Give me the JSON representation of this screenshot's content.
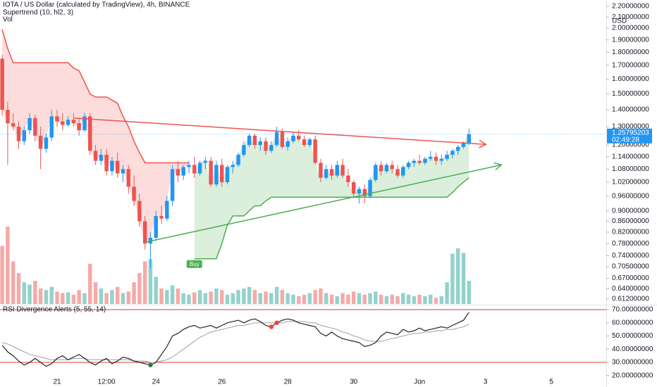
{
  "chart_data": {
    "type": "candlestick",
    "title": "IOTA / US Dollar (calculated by TradingView), 4h, BINANCE",
    "up_color": "#2196f3",
    "down_color": "#ef5350",
    "open": [
      1.75,
      1.4,
      1.32,
      1.3,
      1.22,
      1.28,
      1.35,
      1.25,
      1.18,
      1.24,
      1.36,
      1.33,
      1.31,
      1.34,
      1.32,
      1.28,
      1.36,
      1.17,
      1.12,
      1.15,
      1.07,
      1.12,
      1.06,
      1.08,
      1.0,
      0.94,
      0.86,
      0.78,
      0.8,
      0.88,
      0.87,
      0.94,
      1.08,
      1.05,
      1.09,
      1.1,
      1.06,
      1.11,
      1.12,
      1.01,
      1.1,
      1.02,
      1.09,
      1.1,
      1.15,
      1.2,
      1.25,
      1.2,
      1.22,
      1.17,
      1.2,
      1.27,
      1.19,
      1.22,
      1.25,
      1.23,
      1.2,
      1.23,
      1.11,
      1.04,
      1.08,
      1.05,
      1.1,
      1.05,
      1.02,
      0.97,
      0.99,
      0.96,
      1.03,
      1.1,
      1.07,
      1.1,
      1.08,
      1.05,
      1.09,
      1.11,
      1.12,
      1.11,
      1.13,
      1.14,
      1.12,
      1.13,
      1.15,
      1.17,
      1.19,
      1.21
    ],
    "high": [
      1.78,
      1.45,
      1.38,
      1.33,
      1.3,
      1.38,
      1.37,
      1.3,
      1.26,
      1.4,
      1.4,
      1.38,
      1.36,
      1.38,
      1.35,
      1.38,
      1.38,
      1.2,
      1.18,
      1.18,
      1.14,
      1.16,
      1.1,
      1.1,
      1.05,
      0.97,
      0.88,
      0.82,
      0.9,
      0.92,
      0.96,
      1.1,
      1.12,
      1.1,
      1.12,
      1.14,
      1.12,
      1.14,
      1.14,
      1.12,
      1.13,
      1.1,
      1.12,
      1.16,
      1.22,
      1.26,
      1.26,
      1.24,
      1.24,
      1.22,
      1.3,
      1.29,
      1.24,
      1.27,
      1.28,
      1.25,
      1.24,
      1.25,
      1.13,
      1.1,
      1.1,
      1.12,
      1.13,
      1.08,
      1.03,
      1.0,
      1.01,
      1.04,
      1.11,
      1.12,
      1.11,
      1.12,
      1.1,
      1.1,
      1.12,
      1.13,
      1.15,
      1.14,
      1.17,
      1.16,
      1.15,
      1.17,
      1.18,
      1.2,
      1.22,
      1.29
    ],
    "low": [
      1.36,
      1.1,
      1.28,
      1.18,
      1.2,
      1.26,
      1.22,
      1.08,
      1.16,
      1.22,
      1.3,
      1.28,
      1.3,
      1.3,
      1.25,
      1.27,
      1.15,
      1.1,
      1.1,
      1.05,
      1.05,
      1.04,
      1.02,
      0.97,
      0.92,
      0.84,
      0.76,
      0.7,
      0.79,
      0.85,
      0.86,
      0.92,
      1.02,
      1.03,
      1.06,
      1.04,
      1.05,
      1.08,
      1.0,
      1.0,
      1.0,
      1.01,
      1.06,
      1.09,
      1.14,
      1.19,
      1.18,
      1.17,
      1.15,
      1.16,
      1.19,
      1.18,
      1.17,
      1.21,
      1.22,
      1.19,
      1.19,
      1.1,
      1.02,
      1.03,
      1.03,
      1.04,
      1.04,
      1.0,
      0.95,
      0.93,
      0.93,
      0.95,
      1.02,
      1.05,
      1.06,
      1.06,
      1.04,
      1.04,
      1.08,
      1.09,
      1.1,
      1.1,
      1.12,
      1.1,
      1.1,
      1.12,
      1.13,
      1.15,
      1.18,
      1.2
    ],
    "close": [
      1.4,
      1.32,
      1.3,
      1.22,
      1.28,
      1.35,
      1.25,
      1.18,
      1.24,
      1.36,
      1.33,
      1.31,
      1.34,
      1.32,
      1.28,
      1.36,
      1.17,
      1.12,
      1.15,
      1.07,
      1.12,
      1.06,
      1.08,
      1.0,
      0.94,
      0.86,
      0.78,
      0.8,
      0.88,
      0.87,
      0.94,
      1.08,
      1.05,
      1.09,
      1.1,
      1.06,
      1.11,
      1.12,
      1.01,
      1.1,
      1.02,
      1.09,
      1.1,
      1.15,
      1.2,
      1.25,
      1.2,
      1.22,
      1.17,
      1.2,
      1.27,
      1.19,
      1.22,
      1.25,
      1.23,
      1.2,
      1.23,
      1.11,
      1.04,
      1.08,
      1.05,
      1.1,
      1.05,
      1.02,
      0.97,
      0.99,
      0.96,
      1.03,
      1.1,
      1.07,
      1.1,
      1.08,
      1.05,
      1.09,
      1.11,
      1.12,
      1.11,
      1.13,
      1.14,
      1.12,
      1.13,
      1.15,
      1.17,
      1.19,
      1.21,
      1.25795203
    ],
    "countdown": "02:49:28",
    "price_label_color": "#2196f3",
    "volume": {
      "name": "Vol",
      "ylim": [
        0,
        100
      ],
      "up_color": "rgba(38,166,154,0.5)",
      "down_color": "rgba(239,83,80,0.5)",
      "values": [
        75,
        100,
        55,
        40,
        28,
        25,
        30,
        20,
        18,
        22,
        16,
        14,
        15,
        12,
        18,
        14,
        52,
        28,
        20,
        14,
        18,
        22,
        14,
        16,
        28,
        40,
        55,
        58,
        35,
        20,
        18,
        24,
        20,
        14,
        12,
        15,
        18,
        14,
        16,
        20,
        18,
        12,
        14,
        18,
        20,
        22,
        18,
        14,
        16,
        14,
        22,
        18,
        14,
        12,
        10,
        12,
        14,
        18,
        20,
        14,
        12,
        10,
        14,
        12,
        16,
        14,
        12,
        14,
        16,
        12,
        10,
        12,
        10,
        14,
        12,
        10,
        12,
        10,
        12,
        8,
        10,
        28,
        65,
        72,
        66,
        30
      ]
    },
    "supertrend": {
      "name": "Supertrend (10, hl2, 3)",
      "upper_color": "#ef5350",
      "lower_color": "#4caf50",
      "upper_fill": "rgba(239,83,80,0.2)",
      "lower_fill": "rgba(76,175,80,0.2)",
      "signal_label": "Buy",
      "signal_index": 35,
      "upper": [
        1.99,
        1.83,
        1.72,
        1.72,
        1.72,
        1.72,
        1.72,
        1.72,
        1.72,
        1.72,
        1.72,
        1.72,
        1.72,
        1.68,
        1.66,
        1.58,
        1.5,
        1.48,
        1.48,
        1.48,
        1.46,
        1.44,
        1.36,
        1.3,
        1.22,
        1.16,
        1.11,
        1.11,
        1.11,
        1.11,
        1.11,
        1.11,
        1.11,
        1.11,
        1.11,
        null,
        null,
        null,
        null,
        null,
        null,
        null,
        null,
        null,
        null,
        null,
        null,
        null,
        null,
        null,
        null,
        null,
        null,
        null,
        null,
        null,
        null,
        null,
        null,
        null,
        null,
        null,
        null,
        null,
        null,
        null,
        null,
        null,
        null,
        null,
        null,
        null,
        null,
        null,
        null,
        null,
        null,
        null,
        null,
        null,
        null,
        null,
        null,
        null,
        null,
        null
      ],
      "lower": [
        null,
        null,
        null,
        null,
        null,
        null,
        null,
        null,
        null,
        null,
        null,
        null,
        null,
        null,
        null,
        null,
        null,
        null,
        null,
        null,
        null,
        null,
        null,
        null,
        null,
        null,
        null,
        null,
        null,
        null,
        null,
        null,
        null,
        null,
        null,
        0.73,
        0.73,
        0.73,
        0.73,
        0.73,
        0.78,
        0.845,
        0.88,
        0.88,
        0.88,
        0.9,
        0.92,
        0.92,
        0.94,
        0.955,
        0.955,
        0.955,
        0.955,
        0.955,
        0.955,
        0.955,
        0.955,
        0.955,
        0.955,
        0.955,
        0.955,
        0.955,
        0.955,
        0.955,
        0.955,
        0.955,
        0.955,
        0.955,
        0.955,
        0.955,
        0.955,
        0.955,
        0.955,
        0.955,
        0.955,
        0.955,
        0.955,
        0.955,
        0.955,
        0.955,
        0.955,
        0.955,
        0.975,
        1.0,
        1.02,
        1.04
      ]
    },
    "trendlines": [
      {
        "color": "#ef5350",
        "from": [
          13.1,
          1.35
        ],
        "to": [
          88.1,
          1.203
        ]
      },
      {
        "color": "#4caf50",
        "from": [
          25.9,
          0.784
        ],
        "to": [
          90.9,
          1.1
        ]
      }
    ],
    "log_scale": true,
    "y_unit": "USD",
    "ylim": [
      0.599,
      2.262
    ],
    "yticks": [
      {
        "value": 2.2,
        "label": "2.20000000"
      },
      {
        "value": 2.1,
        "label": "2.10000000"
      },
      {
        "value": 2.0,
        "label": "2.00000000"
      },
      {
        "value": 1.9,
        "label": "1.90000000"
      },
      {
        "value": 1.8,
        "label": "1.80000000"
      },
      {
        "value": 1.7,
        "label": "1.70000000"
      },
      {
        "value": 1.6,
        "label": "1.60000000"
      },
      {
        "value": 1.5,
        "label": "1.50000000"
      },
      {
        "value": 1.4,
        "label": "1.40000000"
      },
      {
        "value": 1.3,
        "label": "1.30000000"
      },
      {
        "value": 1.2,
        "label": "1.20000000"
      },
      {
        "value": 1.14,
        "label": "1.14000000"
      },
      {
        "value": 1.08,
        "label": "1.08000000"
      },
      {
        "value": 1.02,
        "label": "1.02000000"
      },
      {
        "value": 0.96,
        "label": "0.96000000"
      },
      {
        "value": 0.9,
        "label": "0.90000000"
      },
      {
        "value": 0.86,
        "label": "0.86000000"
      },
      {
        "value": 0.82,
        "label": "0.82000000"
      },
      {
        "value": 0.78,
        "label": "0.78000000"
      },
      {
        "value": 0.74,
        "label": "0.74000000"
      },
      {
        "value": 0.705,
        "label": "0.70500000"
      },
      {
        "value": 0.67,
        "label": "0.67000000"
      },
      {
        "value": 0.64,
        "label": "0.64000000"
      },
      {
        "value": 0.612,
        "label": "0.61200000"
      }
    ],
    "xlim": [
      -0.4,
      110
    ],
    "xticks": [
      {
        "value": 10,
        "label": "21"
      },
      {
        "value": 19,
        "label": "12:00"
      },
      {
        "value": 28,
        "label": "24"
      },
      {
        "value": 40,
        "label": "26"
      },
      {
        "value": 52,
        "label": "28"
      },
      {
        "value": 64,
        "label": "30"
      },
      {
        "value": 76,
        "label": "Jun"
      },
      {
        "value": 88,
        "label": "3"
      },
      {
        "value": 100,
        "label": "5"
      }
    ],
    "rsi": {
      "name": "RSI Divergence Alerts (5, 55, 14)",
      "color": "#222222",
      "signal_color": "#9e9e9e",
      "level_color": "#e53935",
      "ylim": [
        18.8,
        72.7
      ],
      "levels": [
        70,
        30
      ],
      "yticks": [
        {
          "value": 70,
          "label": "70.00000000"
        },
        {
          "value": 60,
          "label": "60.00000000"
        },
        {
          "value": 50,
          "label": "50.00000000"
        },
        {
          "value": 40,
          "label": "40.00000000"
        },
        {
          "value": 30,
          "label": "30.00000000"
        },
        {
          "value": 20,
          "label": "20.00000000"
        }
      ],
      "values": [
        43,
        38,
        35,
        31,
        28,
        30,
        33,
        30,
        27,
        29,
        33,
        35,
        32,
        34,
        36,
        33,
        30,
        28,
        31,
        33,
        29,
        31,
        34,
        33,
        31,
        30,
        29,
        28,
        30,
        36,
        42,
        50,
        52,
        55,
        57,
        58,
        56,
        57,
        58,
        56,
        58,
        60,
        61,
        62,
        60,
        62,
        63,
        61,
        58,
        57,
        60,
        62,
        63,
        62,
        60,
        59,
        58,
        57,
        52,
        50,
        53,
        50,
        48,
        47,
        46,
        45,
        42,
        43,
        45,
        50,
        53,
        52,
        51,
        55,
        53,
        54,
        56,
        54,
        55,
        56,
        57,
        56,
        58,
        60,
        62,
        68
      ],
      "signal": [
        45,
        44,
        42,
        40,
        38,
        36,
        35,
        34,
        33,
        32,
        32,
        32,
        32,
        33,
        33,
        33,
        32,
        32,
        32,
        32,
        32,
        32,
        32,
        32,
        31,
        31,
        31,
        30,
        30,
        31,
        32,
        34,
        37,
        40,
        43,
        46,
        49,
        51,
        53,
        54,
        55,
        56,
        57,
        58,
        58,
        59,
        60,
        60,
        60,
        60,
        60,
        60,
        61,
        61,
        61,
        61,
        60,
        60,
        58,
        57,
        56,
        55,
        53,
        52,
        50,
        49,
        47,
        46,
        46,
        46,
        47,
        48,
        49,
        50,
        51,
        52,
        52,
        53,
        53,
        54,
        54,
        55,
        55,
        56,
        57,
        59
      ],
      "markers": [
        {
          "index": 27,
          "color": "#2e7d32"
        },
        {
          "index": 49,
          "color": "#f44336"
        },
        {
          "index": 50,
          "color": "#f44336"
        }
      ]
    }
  }
}
